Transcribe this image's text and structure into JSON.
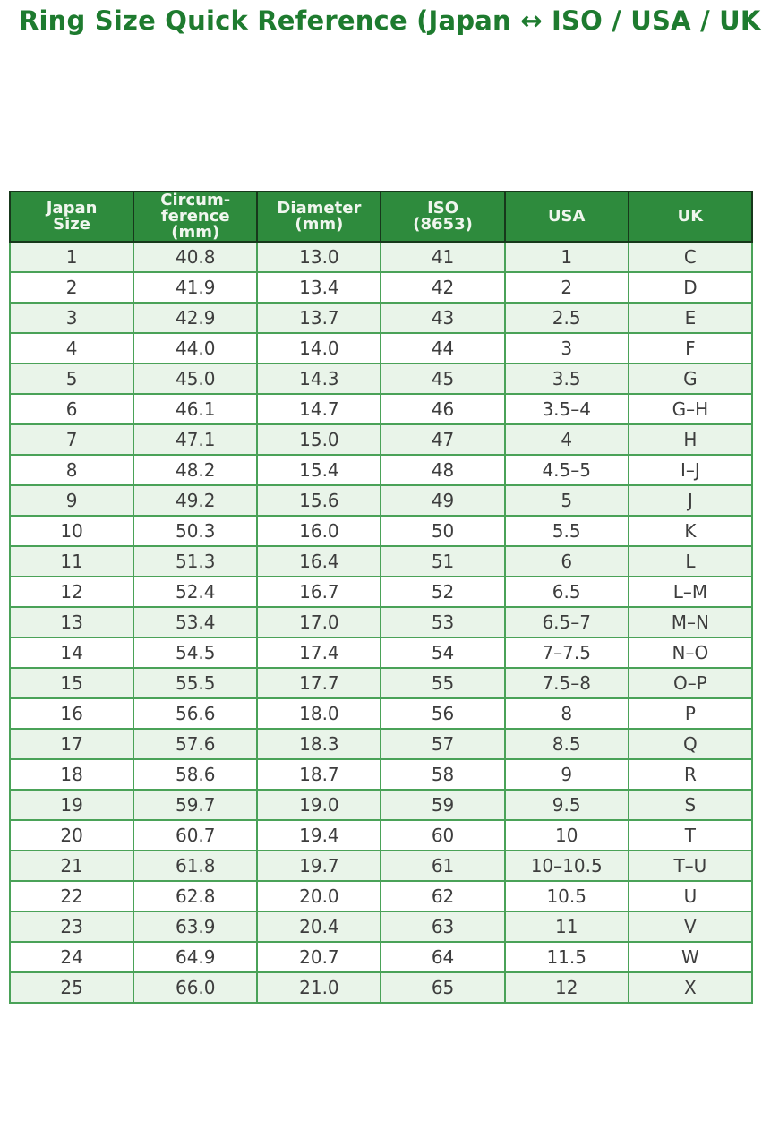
{
  "title": "Ring Size Quick Reference (Japan ↔ ISO / USA / UK)",
  "colors": {
    "title_green": "#1e7b2f",
    "header_bg": "#2e8b3d",
    "header_text": "#f0f6ee",
    "row_alt_bg": "#e9f4e9",
    "row_bg": "#ffffff",
    "grid_green": "#4aa258",
    "outer_border": "#17381b",
    "cell_text": "#3d3d3d"
  },
  "table": {
    "headers": [
      "Japan\nSize",
      "Circum-\nference\n(mm)",
      "Diameter\n(mm)",
      "ISO\n(8653)",
      "USA",
      "UK"
    ],
    "rows": [
      [
        "1",
        "40.8",
        "13.0",
        "41",
        "1",
        "C"
      ],
      [
        "2",
        "41.9",
        "13.4",
        "42",
        "2",
        "D"
      ],
      [
        "3",
        "42.9",
        "13.7",
        "43",
        "2.5",
        "E"
      ],
      [
        "4",
        "44.0",
        "14.0",
        "44",
        "3",
        "F"
      ],
      [
        "5",
        "45.0",
        "14.3",
        "45",
        "3.5",
        "G"
      ],
      [
        "6",
        "46.1",
        "14.7",
        "46",
        "3.5–4",
        "G–H"
      ],
      [
        "7",
        "47.1",
        "15.0",
        "47",
        "4",
        "H"
      ],
      [
        "8",
        "48.2",
        "15.4",
        "48",
        "4.5–5",
        "I–J"
      ],
      [
        "9",
        "49.2",
        "15.6",
        "49",
        "5",
        "J"
      ],
      [
        "10",
        "50.3",
        "16.0",
        "50",
        "5.5",
        "K"
      ],
      [
        "11",
        "51.3",
        "16.4",
        "51",
        "6",
        "L"
      ],
      [
        "12",
        "52.4",
        "16.7",
        "52",
        "6.5",
        "L–M"
      ],
      [
        "13",
        "53.4",
        "17.0",
        "53",
        "6.5–7",
        "M–N"
      ],
      [
        "14",
        "54.5",
        "17.4",
        "54",
        "7–7.5",
        "N–O"
      ],
      [
        "15",
        "55.5",
        "17.7",
        "55",
        "7.5–8",
        "O–P"
      ],
      [
        "16",
        "56.6",
        "18.0",
        "56",
        "8",
        "P"
      ],
      [
        "17",
        "57.6",
        "18.3",
        "57",
        "8.5",
        "Q"
      ],
      [
        "18",
        "58.6",
        "18.7",
        "58",
        "9",
        "R"
      ],
      [
        "19",
        "59.7",
        "19.0",
        "59",
        "9.5",
        "S"
      ],
      [
        "20",
        "60.7",
        "19.4",
        "60",
        "10",
        "T"
      ],
      [
        "21",
        "61.8",
        "19.7",
        "61",
        "10–10.5",
        "T–U"
      ],
      [
        "22",
        "62.8",
        "20.0",
        "62",
        "10.5",
        "U"
      ],
      [
        "23",
        "63.9",
        "20.4",
        "63",
        "11",
        "V"
      ],
      [
        "24",
        "64.9",
        "20.7",
        "64",
        "11.5",
        "W"
      ],
      [
        "25",
        "66.0",
        "21.0",
        "65",
        "12",
        "X"
      ]
    ]
  }
}
